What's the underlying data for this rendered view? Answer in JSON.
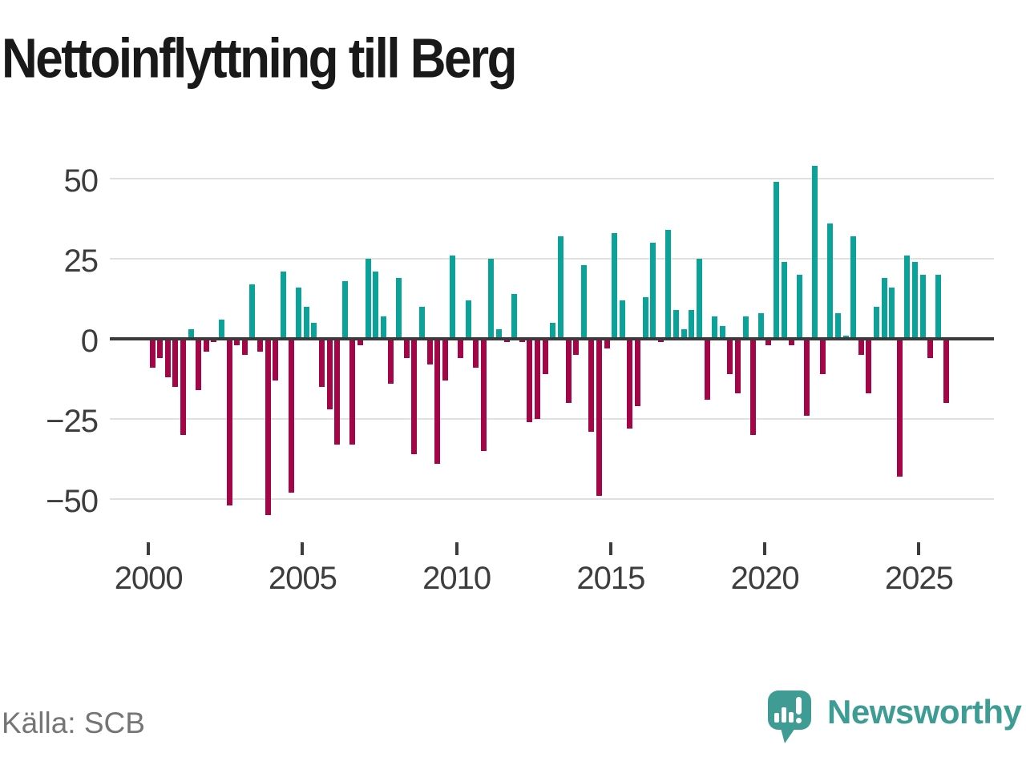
{
  "title": "Nettoinflyttning till Berg",
  "source": "Källa: SCB",
  "branding": {
    "name": "Newsworthy"
  },
  "chart_data": {
    "type": "bar",
    "title": "Nettoinflyttning till Berg",
    "frequency": "quarterly",
    "start_year": 2000,
    "start_quarter": 1,
    "values": [
      -9,
      -6,
      -12,
      -15,
      -30,
      3,
      -16,
      -4,
      -1,
      6,
      -52,
      -2,
      -5,
      17,
      -4,
      -55,
      -13,
      21,
      -48,
      16,
      10,
      5,
      -15,
      -22,
      -33,
      18,
      -33,
      -2,
      25,
      21,
      7,
      -14,
      19,
      -6,
      -36,
      10,
      -8,
      -39,
      -13,
      26,
      -6,
      12,
      -9,
      -35,
      25,
      3,
      -1,
      14,
      -1,
      -26,
      -25,
      -11,
      5,
      32,
      -20,
      -5,
      23,
      -29,
      -49,
      -3,
      33,
      12,
      -28,
      -21,
      13,
      30,
      -1,
      34,
      9,
      3,
      9,
      25,
      -19,
      7,
      4,
      -11,
      -17,
      7,
      -30,
      8,
      -2,
      49,
      24,
      -2,
      20,
      -24,
      54,
      -11,
      36,
      8,
      1,
      32,
      -5,
      -17,
      10,
      19,
      16,
      -43,
      26,
      24,
      20,
      -6,
      20,
      -20
    ],
    "x_tick_labels": [
      "2000",
      "2005",
      "2010",
      "2015",
      "2020",
      "2025"
    ],
    "y_ticks": [
      50,
      25,
      0,
      -25,
      -50
    ],
    "ylim": [
      -60,
      57
    ],
    "grid": "horizontal",
    "legend": "none",
    "positive_color": "#0ba29a",
    "negative_color": "#a30546",
    "axis_color": "#3a3a3a",
    "gridline_color": "#e0e0e0",
    "tick_text_color": "#3d3d3d",
    "logo_color": "#3f9c94"
  }
}
